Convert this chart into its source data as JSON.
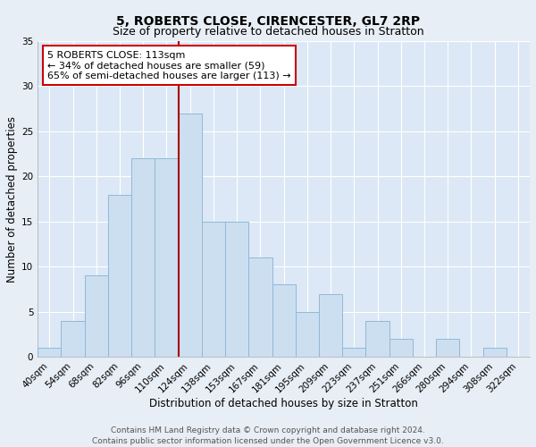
{
  "title": "5, ROBERTS CLOSE, CIRENCESTER, GL7 2RP",
  "subtitle": "Size of property relative to detached houses in Stratton",
  "xlabel": "Distribution of detached houses by size in Stratton",
  "ylabel": "Number of detached properties",
  "bar_labels": [
    "40sqm",
    "54sqm",
    "68sqm",
    "82sqm",
    "96sqm",
    "110sqm",
    "124sqm",
    "138sqm",
    "153sqm",
    "167sqm",
    "181sqm",
    "195sqm",
    "209sqm",
    "223sqm",
    "237sqm",
    "251sqm",
    "266sqm",
    "280sqm",
    "294sqm",
    "308sqm",
    "322sqm"
  ],
  "bar_values": [
    1,
    4,
    9,
    18,
    22,
    22,
    27,
    15,
    15,
    11,
    8,
    5,
    7,
    1,
    4,
    2,
    0,
    2,
    0,
    1,
    0
  ],
  "bar_color": "#ccdff0",
  "bar_edge_color": "#90b8d8",
  "background_color": "#e8eef5",
  "plot_bg_color": "#dce8f5",
  "ylim": [
    0,
    35
  ],
  "yticks": [
    0,
    5,
    10,
    15,
    20,
    25,
    30,
    35
  ],
  "vline_x": 5.5,
  "vline_color": "#aa0000",
  "annotation_line1": "5 ROBERTS CLOSE: 113sqm",
  "annotation_line2": "← 34% of detached houses are smaller (59)",
  "annotation_line3": "65% of semi-detached houses are larger (113) →",
  "annotation_box_color": "#cc0000",
  "annotation_box_bg": "#ffffff",
  "footer_line1": "Contains HM Land Registry data © Crown copyright and database right 2024.",
  "footer_line2": "Contains public sector information licensed under the Open Government Licence v3.0.",
  "title_fontsize": 10,
  "subtitle_fontsize": 9,
  "axis_label_fontsize": 8.5,
  "tick_fontsize": 7.5,
  "annotation_fontsize": 8,
  "footer_fontsize": 6.5
}
